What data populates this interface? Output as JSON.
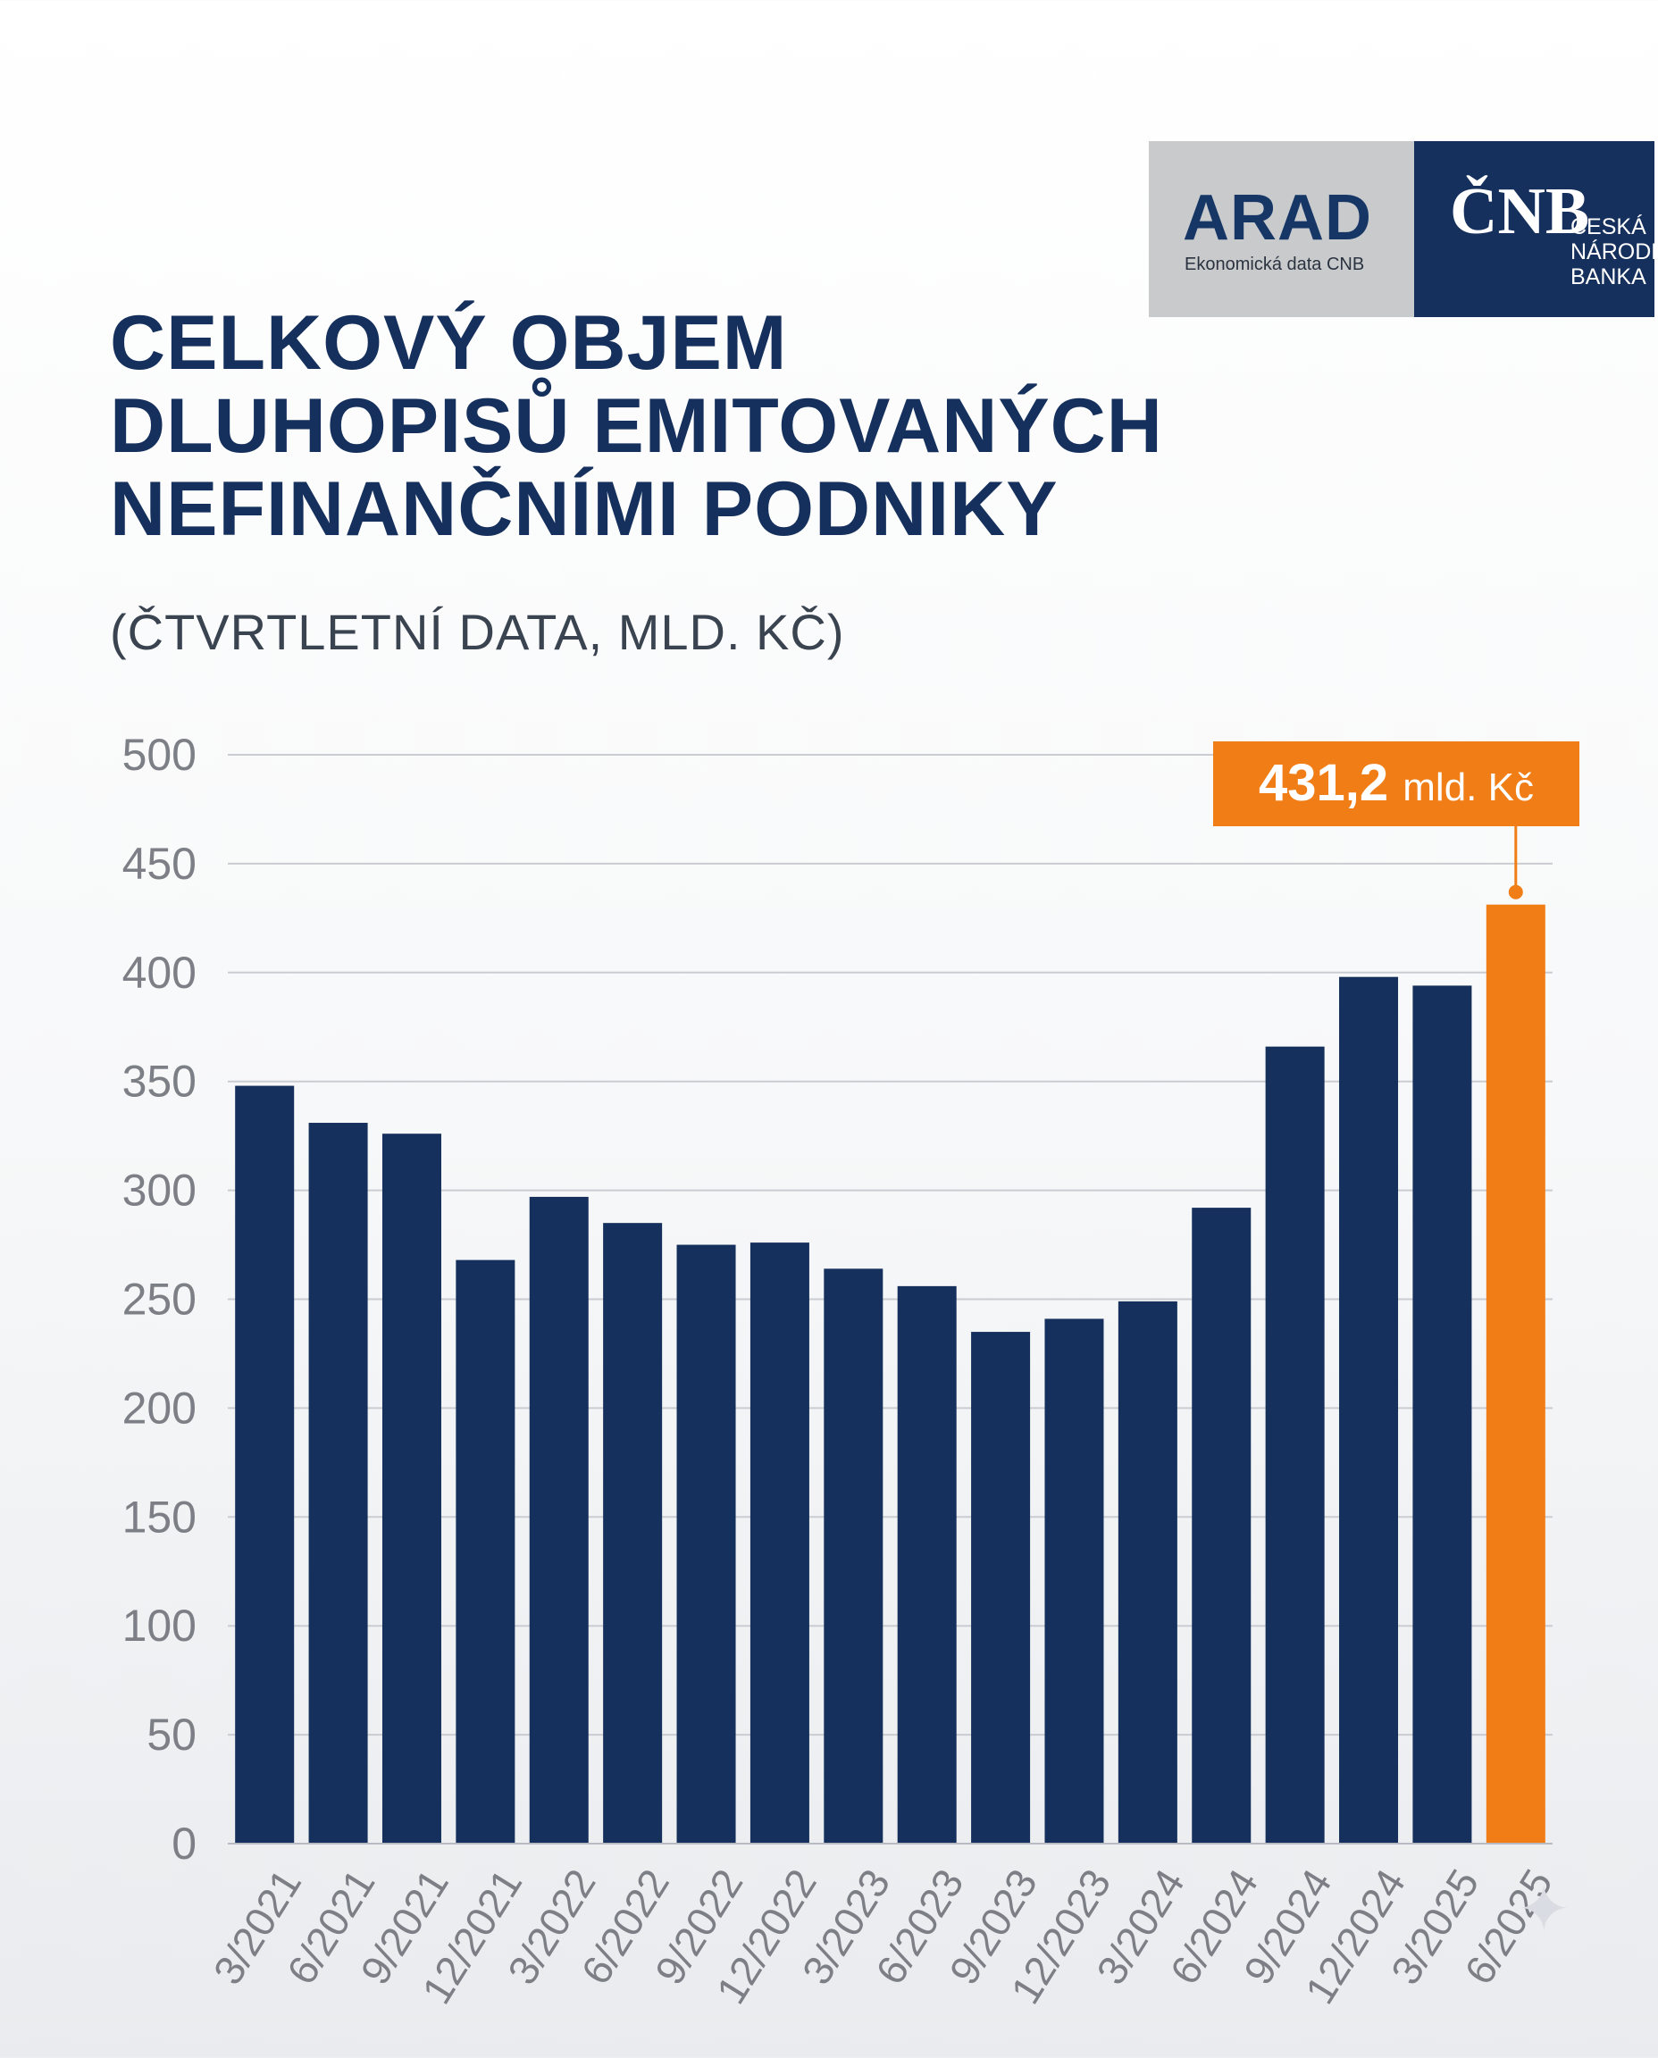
{
  "logos": {
    "arad_name": "ARAD",
    "arad_caption": "Ekonomická data CNB",
    "cnb_mark": "ČNB",
    "cnb_line1": "ČESKÁ",
    "cnb_line2": "NÁRODNÍ",
    "cnb_line3": "BANKA"
  },
  "chart_data": {
    "type": "bar",
    "title_lines": [
      "CELKOVÝ OBJEM",
      "DLUHOPISŮ EMITOVANÝCH",
      "NEFINANČNÍMI PODNIKY"
    ],
    "subtitle": "(ČTVRTLETNÍ DATA, MLD. KČ)",
    "categories": [
      "3/2021",
      "6/2021",
      "9/2021",
      "12/2021",
      "3/2022",
      "6/2022",
      "9/2022",
      "12/2022",
      "3/2023",
      "6/2023",
      "9/2023",
      "12/2023",
      "3/2024",
      "6/2024",
      "9/2024",
      "12/2024",
      "3/2025",
      "6/2025"
    ],
    "values": [
      348,
      331,
      326,
      268,
      297,
      285,
      275,
      276,
      264,
      256,
      235,
      241,
      249,
      292,
      366,
      398,
      394,
      431.2
    ],
    "ylim": [
      0,
      500
    ],
    "yticks": [
      0,
      50,
      100,
      150,
      200,
      250,
      300,
      350,
      400,
      450,
      500
    ],
    "grid": true,
    "bar_color": "#15305c",
    "highlight_color": "#f07d15",
    "highlight_index": 17,
    "annotation": {
      "value": "431,2",
      "unit": "mld. Kč"
    }
  }
}
